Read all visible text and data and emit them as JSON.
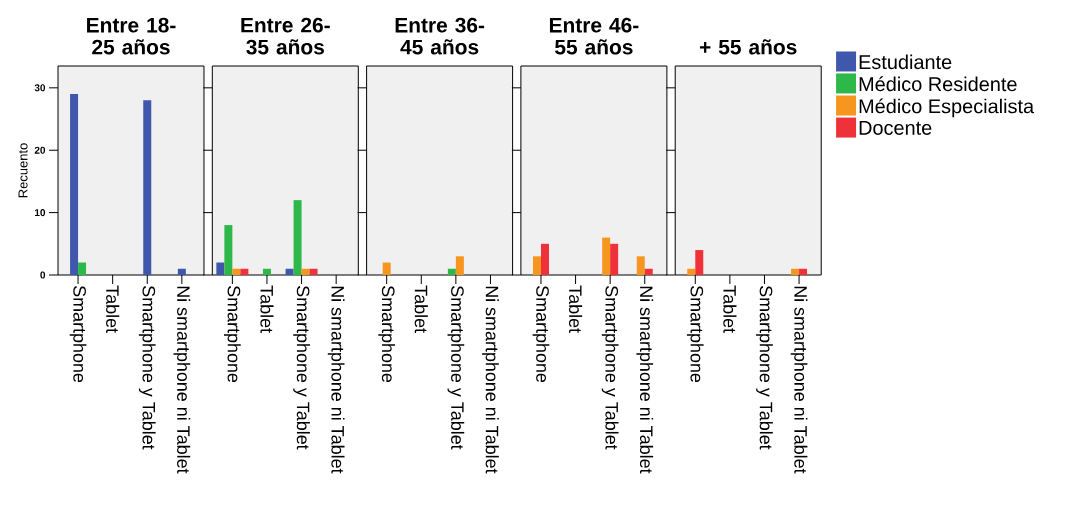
{
  "chart_data": [
    {
      "type": "bar",
      "title": "Entre 18-25 años",
      "ylabel": "Recuento",
      "categories": [
        "Smartphone",
        "Tablet",
        "Smartphone y Tablet",
        "Ni smartphone ni Tablet"
      ],
      "ylim": [
        0,
        33.5
      ],
      "yticks": [
        0,
        10,
        20,
        30
      ],
      "series": [
        {
          "color": "#3f58ab",
          "values": [
            29,
            null,
            28,
            1
          ]
        },
        {
          "color": "#2eb84a",
          "values": [
            2,
            null,
            null,
            null
          ]
        },
        {
          "color": "#f7961e",
          "values": [
            null,
            null,
            null,
            null
          ]
        },
        {
          "color": "#ef3239",
          "values": [
            null,
            null,
            null,
            null
          ]
        }
      ]
    },
    {
      "type": "bar",
      "title": "Entre 26-35 años",
      "categories": [
        "Smartphone",
        "Tablet",
        "Smartphone y Tablet",
        "Ni smartphone ni Tablet"
      ],
      "ylim": [
        0,
        33.5
      ],
      "yticks": [
        0,
        10,
        20,
        30
      ],
      "tick_labels": "x",
      "series": [
        {
          "color": "#3f58ab",
          "values": [
            2,
            null,
            1,
            null
          ]
        },
        {
          "color": "#2eb84a",
          "values": [
            8,
            1,
            12,
            null
          ]
        },
        {
          "color": "#f7961e",
          "values": [
            1,
            null,
            1,
            null
          ]
        },
        {
          "color": "#ef3239",
          "values": [
            1,
            null,
            1,
            null
          ]
        }
      ]
    },
    {
      "type": "bar",
      "title": "Entre 36-45 años",
      "categories": [
        "Smartphone",
        "Tablet",
        "Smartphone y Tablet",
        "Ni smartphone ni Tablet"
      ],
      "ylim": [
        0,
        33.5
      ],
      "yticks": [
        0,
        10,
        20,
        30
      ],
      "tick_labels": "x",
      "series": [
        {
          "color": "#3f58ab",
          "values": [
            null,
            null,
            null,
            null
          ]
        },
        {
          "color": "#2eb84a",
          "values": [
            null,
            null,
            1,
            null
          ]
        },
        {
          "color": "#f7961e",
          "values": [
            2,
            null,
            3,
            null
          ]
        },
        {
          "color": "#ef3239",
          "values": [
            null,
            null,
            null,
            null
          ]
        }
      ]
    },
    {
      "type": "bar",
      "title": "Entre 46-55 años",
      "categories": [
        "Smartphone",
        "Tablet",
        "Smartphone y Tablet",
        "Ni smartphone ni Tablet"
      ],
      "ylim": [
        0,
        33.5
      ],
      "yticks": [
        0,
        10,
        20,
        30
      ],
      "tick_labels": "x",
      "series": [
        {
          "color": "#3f58ab",
          "values": [
            null,
            null,
            null,
            null
          ]
        },
        {
          "color": "#2eb84a",
          "values": [
            null,
            null,
            null,
            null
          ]
        },
        {
          "color": "#f7961e",
          "values": [
            3,
            null,
            6,
            3
          ]
        },
        {
          "color": "#ef3239",
          "values": [
            5,
            null,
            5,
            1
          ]
        }
      ]
    },
    {
      "type": "bar",
      "title": "+ 55 años",
      "categories": [
        "Smartphone",
        "Tablet",
        "Smartphone y Tablet",
        "Ni smartphone ni Tablet"
      ],
      "ylim": [
        0,
        33.5
      ],
      "yticks": [
        0,
        10,
        20,
        30
      ],
      "tick_labels": "x",
      "legend": "right",
      "series": [
        {
          "name": "Estudiante",
          "color": "#3f58ab",
          "values": [
            null,
            null,
            null,
            null
          ]
        },
        {
          "name": "Médico Residente",
          "color": "#2eb84a",
          "values": [
            null,
            null,
            null,
            null
          ]
        },
        {
          "name": "Médico Especialista",
          "color": "#f7961e",
          "values": [
            1,
            null,
            null,
            1
          ]
        },
        {
          "name": "Docente",
          "color": "#ef3239",
          "values": [
            4,
            null,
            null,
            1
          ]
        }
      ]
    }
  ]
}
